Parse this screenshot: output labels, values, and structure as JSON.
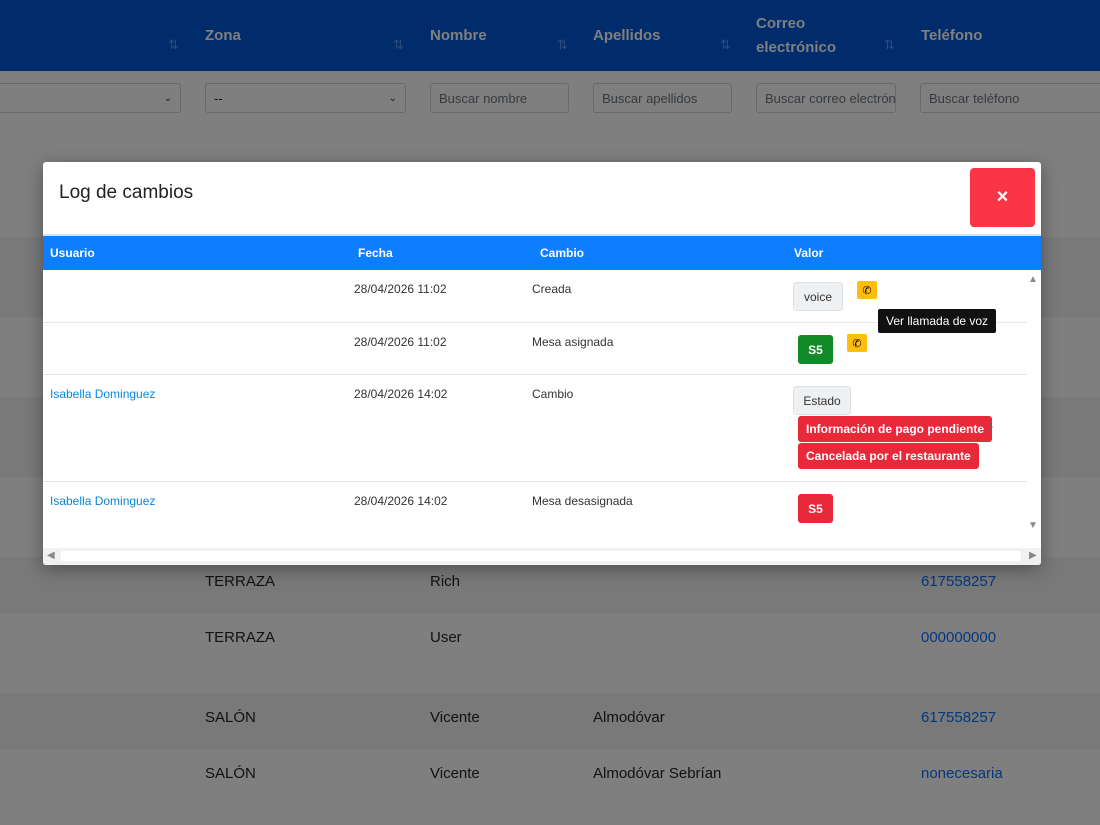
{
  "table": {
    "columns": [
      {
        "label": "Zona"
      },
      {
        "label": "Nombre"
      },
      {
        "label": "Apellidos"
      },
      {
        "label": "Correo electrónico"
      },
      {
        "label": "Teléfono"
      }
    ],
    "filters": {
      "zona_value": "--",
      "nombre_placeholder": "Buscar nombre",
      "apellidos_placeholder": "Buscar apellidos",
      "correo_placeholder": "Buscar correo electrónico",
      "telefono_placeholder": "Buscar teléfono"
    },
    "rows": [
      {
        "zona": "TERRAZA",
        "nombre": "Rich",
        "apellidos": "",
        "telefono": "617558257"
      },
      {
        "zona": "TERRAZA",
        "nombre": "User",
        "apellidos": "",
        "telefono": "000000000"
      },
      {
        "zona": "SALÓN",
        "nombre": "Vicente",
        "apellidos": "Almodóvar",
        "telefono": "617558257"
      },
      {
        "zona": "SALÓN",
        "nombre": "Vicente",
        "apellidos": "Almodóvar Sebrían",
        "telefono": "nonecesaria"
      }
    ]
  },
  "modal": {
    "title": "Log de cambios",
    "close_label": "×",
    "headers": {
      "usuario": "Usuario",
      "fecha": "Fecha",
      "cambio": "Cambio",
      "valor": "Valor"
    },
    "tooltip": "Ver llamada de voz",
    "rows": [
      {
        "usuario": "",
        "fecha": "28/04/2026 11:02",
        "cambio": "Creada",
        "valor": "voice"
      },
      {
        "usuario": "",
        "fecha": "28/04/2026 11:02",
        "cambio": "Mesa asignada",
        "valor": "S5"
      },
      {
        "usuario": "Isabella Dominguez",
        "fecha": "28/04/2026 14:02",
        "cambio": "Cambio",
        "valor": "Estado",
        "from": "Información de pago pendiente",
        "to": "Cancelada por el restaurante"
      },
      {
        "usuario": "Isabella Dominguez",
        "fecha": "28/04/2026 14:02",
        "cambio": "Mesa desasignada",
        "valor": "S5"
      }
    ]
  },
  "colors": {
    "header": "#0058d8",
    "modal_header": "#0d7eff",
    "danger": "#fa3546",
    "success": "#128a27",
    "warning": "#ffbe0b"
  },
  "icons": [
    "sort-icon",
    "chevron-down-icon",
    "close-icon",
    "phone-icon",
    "chevron-right-icon"
  ]
}
